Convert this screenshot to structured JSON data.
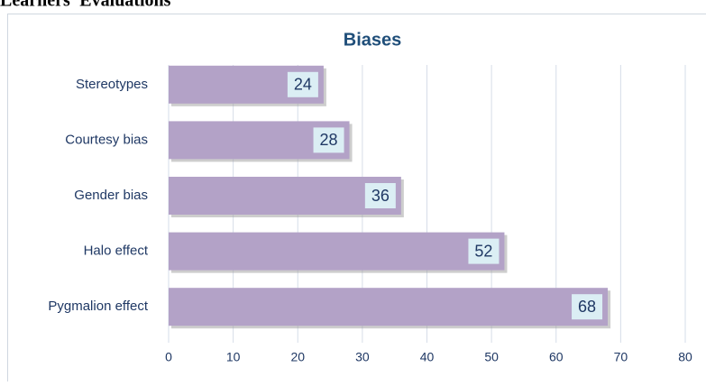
{
  "heading": "Learners' Evaluations",
  "chart_data": {
    "type": "bar",
    "orientation": "horizontal",
    "title": "Biases",
    "categories": [
      "Stereotypes",
      "Courtesy bias",
      "Gender bias",
      "Halo effect",
      "Pygmalion effect"
    ],
    "values": [
      24,
      28,
      36,
      52,
      68
    ],
    "color": "#b3a2c7",
    "xlim": [
      0,
      80
    ],
    "xticks": [
      0,
      10,
      20,
      30,
      40,
      50,
      60,
      70,
      80
    ],
    "grid": true
  }
}
